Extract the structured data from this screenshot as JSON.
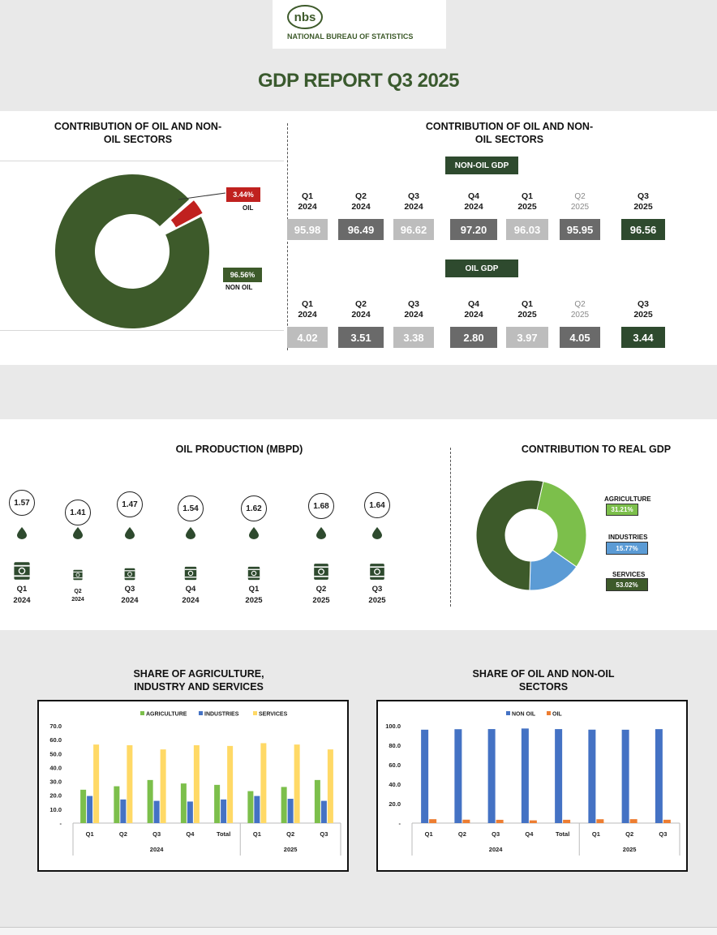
{
  "header": {
    "logo_text": "nbs",
    "bureau_name": "NATIONAL BUREAU OF STATISTICS",
    "report_title": "GDP REPORT Q3 2025"
  },
  "colors": {
    "dark_green": "#3d5a2a",
    "red": "#c0211f",
    "light_green": "#7cbf4b",
    "blue": "#5b9bd5",
    "yellow": "#ffd966",
    "chart_blue": "#4472c4",
    "orange": "#ed7d31"
  },
  "contribution_donut": {
    "title": "CONTRIBUTION OF OIL AND NON-OIL SECTORS",
    "oil_value": "3.44%",
    "oil_label": "OIL",
    "nonoil_value": "96.56%",
    "nonoil_label": "NON OIL"
  },
  "contribution_table": {
    "title": "CONTRIBUTION OF OIL AND NON-OIL SECTORS",
    "nonoil_tag": "NON-OIL GDP",
    "oil_tag": "OIL GDP",
    "quarters": [
      {
        "q": "Q1",
        "y": "2024"
      },
      {
        "q": "Q2",
        "y": "2024"
      },
      {
        "q": "Q3",
        "y": "2024"
      },
      {
        "q": "Q4",
        "y": "2024"
      },
      {
        "q": "Q1",
        "y": "2025"
      },
      {
        "q": "Q2",
        "y": "2025"
      },
      {
        "q": "Q3",
        "y": "2025"
      }
    ],
    "nonoil_values": [
      "95.98",
      "96.49",
      "96.62",
      "97.20",
      "96.03",
      "95.95",
      "96.56"
    ],
    "oil_values": [
      "4.02",
      "3.51",
      "3.38",
      "2.80",
      "3.97",
      "4.05",
      "3.44"
    ]
  },
  "oil_production": {
    "title": "OIL PRODUCTION (MBPD)",
    "items": [
      {
        "value": "1.57",
        "q": "Q1",
        "y": "2024"
      },
      {
        "value": "1.41",
        "q": "Q2",
        "y": "2024"
      },
      {
        "value": "1.47",
        "q": "Q3",
        "y": "2024"
      },
      {
        "value": "1.54",
        "q": "Q4",
        "y": "2024"
      },
      {
        "value": "1.62",
        "q": "Q1",
        "y": "2025"
      },
      {
        "value": "1.68",
        "q": "Q2",
        "y": "2025"
      },
      {
        "value": "1.64",
        "q": "Q3",
        "y": "2025"
      }
    ]
  },
  "real_gdp": {
    "title": "CONTRIBUTION TO REAL GDP",
    "agriculture_label": "AGRICULTURE",
    "agriculture_value": "31.21%",
    "industries_label": "INDUSTRIES",
    "industries_value": "15.77%",
    "services_label": "SERVICES",
    "services_value": "53.02%"
  },
  "sector_chart": {
    "title": "SHARE OF AGRICULTURE, INDUSTRY AND SERVICES"
  },
  "oil_chart": {
    "title": "SHARE OF OIL AND NON-OIL SECTORS"
  },
  "chart_data": [
    {
      "type": "pie",
      "title": "CONTRIBUTION OF OIL AND NON-OIL SECTORS",
      "categories": [
        "OIL",
        "NON OIL"
      ],
      "values": [
        3.44,
        96.56
      ]
    },
    {
      "type": "pie",
      "title": "CONTRIBUTION TO REAL GDP",
      "categories": [
        "AGRICULTURE",
        "INDUSTRIES",
        "SERVICES"
      ],
      "values": [
        31.21,
        15.77,
        53.02
      ]
    },
    {
      "type": "bar",
      "title": "SHARE OF AGRICULTURE, INDUSTRY AND SERVICES",
      "categories": [
        "Q1",
        "Q2",
        "Q3",
        "Q4",
        "Total",
        "Q1",
        "Q2",
        "Q3"
      ],
      "groups": [
        {
          "label": "2024",
          "count": 5
        },
        {
          "label": "2025",
          "count": 3
        }
      ],
      "series": [
        {
          "name": "AGRICULTURE",
          "values": [
            24,
            26.5,
            31,
            28.5,
            27.5,
            23,
            26,
            31
          ]
        },
        {
          "name": "INDUSTRIES",
          "values": [
            19.5,
            17,
            16,
            15.5,
            17,
            19.5,
            17.5,
            16
          ]
        },
        {
          "name": "SERVICES",
          "values": [
            56.5,
            56,
            53,
            56,
            55.5,
            57.5,
            56.5,
            53
          ]
        }
      ],
      "yticks": [
        "-",
        "10.0",
        "20.0",
        "30.0",
        "40.0",
        "50.0",
        "60.0",
        "70.0"
      ],
      "ylim": [
        0,
        70
      ]
    },
    {
      "type": "bar",
      "title": "SHARE OF OIL AND NON-OIL SECTORS",
      "categories": [
        "Q1",
        "Q2",
        "Q3",
        "Q4",
        "Total",
        "Q1",
        "Q2",
        "Q3"
      ],
      "groups": [
        {
          "label": "2024",
          "count": 5
        },
        {
          "label": "2025",
          "count": 3
        }
      ],
      "series": [
        {
          "name": "NON OIL",
          "values": [
            95.98,
            96.49,
            96.62,
            97.2,
            96.6,
            96.03,
            95.95,
            96.56
          ]
        },
        {
          "name": "OIL",
          "values": [
            4.02,
            3.51,
            3.38,
            2.8,
            3.4,
            3.97,
            4.05,
            3.44
          ]
        }
      ],
      "yticks": [
        "-",
        "20.0",
        "40.0",
        "60.0",
        "80.0",
        "100.0"
      ],
      "ylim": [
        0,
        100
      ]
    }
  ]
}
